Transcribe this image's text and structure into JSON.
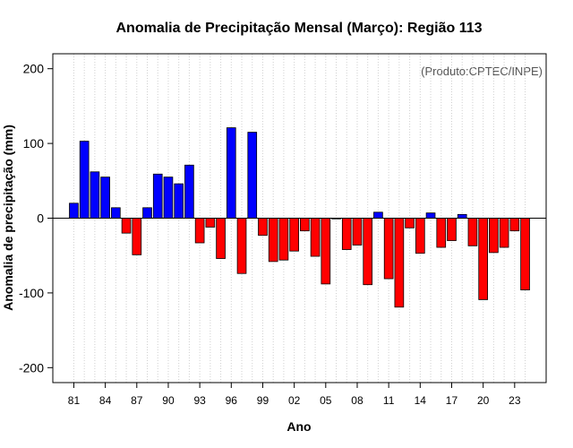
{
  "chart_data": {
    "type": "bar",
    "title": "Anomalia de Precipitação Mensal (Março): Região 113",
    "xlabel": "Ano",
    "ylabel": "Anomalia de precipitação (mm)",
    "credit": "(Produto:CPTEC/INPE)",
    "ylim": [
      -220,
      220
    ],
    "yticks": [
      -200,
      -100,
      0,
      100,
      200
    ],
    "ytick_labels": [
      "-200",
      "-100",
      "0",
      "100",
      "200"
    ],
    "xlim": [
      1979.0,
      2026.0
    ],
    "xticks": [
      1981,
      1984,
      1987,
      1990,
      1993,
      1996,
      1999,
      2002,
      2005,
      2008,
      2011,
      2014,
      2017,
      2020,
      2023
    ],
    "xtick_labels": [
      "81",
      "84",
      "87",
      "90",
      "93",
      "96",
      "99",
      "02",
      "05",
      "08",
      "11",
      "14",
      "17",
      "20",
      "23"
    ],
    "grid": true,
    "positive_color": "#0000ff",
    "negative_color": "#ff0000",
    "years": [
      1981,
      1982,
      1983,
      1984,
      1985,
      1986,
      1987,
      1988,
      1989,
      1990,
      1991,
      1992,
      1993,
      1994,
      1995,
      1996,
      1997,
      1998,
      1999,
      2000,
      2001,
      2002,
      2003,
      2004,
      2005,
      2006,
      2007,
      2008,
      2009,
      2010,
      2011,
      2012,
      2013,
      2014,
      2015,
      2016,
      2017,
      2018,
      2019,
      2020,
      2021,
      2022,
      2023,
      2024
    ],
    "values": [
      20,
      103,
      62,
      55,
      14,
      -20,
      -49,
      14,
      59,
      55,
      46,
      71,
      -33,
      -12,
      -54,
      121,
      -74,
      115,
      -23,
      -58,
      -56,
      -44,
      -17,
      -51,
      -88,
      -1,
      -42,
      -36,
      -89,
      8,
      -81,
      -119,
      -13,
      -47,
      7,
      -39,
      -30,
      5,
      -37,
      -109,
      -46,
      -39,
      -17,
      -96
    ]
  }
}
